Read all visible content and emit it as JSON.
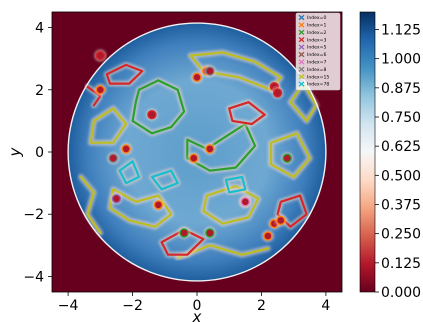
{
  "chart_data": {
    "type": "heatmap",
    "title": "",
    "xlabel": "x",
    "ylabel": "y",
    "xlim": [
      -4.5,
      4.5
    ],
    "ylim": [
      -4.5,
      4.5
    ],
    "xticks": [
      -4,
      -2,
      0,
      2,
      4
    ],
    "yticks": [
      -4,
      -2,
      0,
      2,
      4
    ],
    "xtick_labels": [
      "−4",
      "−2",
      "0",
      "2",
      "4"
    ],
    "ytick_labels": [
      "−4",
      "−2",
      "0",
      "2",
      "4"
    ],
    "domain_radius": 4.0,
    "outside_value": 0.0,
    "colorbar": {
      "colormap": "RdBu",
      "min": 0.0,
      "max": 1.2,
      "ticks": [
        0.0,
        0.125,
        0.25,
        0.375,
        0.5,
        0.625,
        0.75,
        0.875,
        1.0,
        1.125
      ],
      "tick_labels": [
        "0.000",
        "0.125",
        "0.250",
        "0.375",
        "0.500",
        "0.625",
        "0.750",
        "0.875",
        "1.000",
        "1.125"
      ]
    },
    "legend": {
      "placement": "top-right",
      "marker": "x",
      "entries": [
        {
          "label": "Index=0",
          "color": "#1f77b4"
        },
        {
          "label": "Index=1",
          "color": "#ff7f0e"
        },
        {
          "label": "Index=2",
          "color": "#2ca02c"
        },
        {
          "label": "Index=3",
          "color": "#d62728"
        },
        {
          "label": "Index=5",
          "color": "#9467bd"
        },
        {
          "label": "Index=6",
          "color": "#8c564b"
        },
        {
          "label": "Index=7",
          "color": "#e377c2"
        },
        {
          "label": "Index=8",
          "color": "#7f7f7f"
        },
        {
          "label": "Index=15",
          "color": "#bcbd22"
        },
        {
          "label": "Index=78",
          "color": "#17becf"
        }
      ]
    },
    "contour_series": [
      {
        "index": 2,
        "color": "#2ca02c",
        "points": [
          [
            -1.8,
            2.0
          ],
          [
            -1.2,
            2.3
          ],
          [
            -0.6,
            2.0
          ],
          [
            -0.4,
            1.3
          ],
          [
            -0.8,
            0.8
          ],
          [
            -1.4,
            0.6
          ],
          [
            -2.0,
            1.0
          ],
          [
            -1.9,
            1.6
          ]
        ]
      },
      {
        "index": 2,
        "color": "#2ca02c",
        "points": [
          [
            -0.3,
            0.4
          ],
          [
            0.3,
            0.1
          ],
          [
            0.9,
            0.5
          ],
          [
            1.5,
            0.9
          ],
          [
            1.8,
            0.2
          ],
          [
            1.2,
            -0.5
          ],
          [
            0.4,
            -0.6
          ],
          [
            -0.3,
            -0.2
          ]
        ]
      },
      {
        "index": 15,
        "color": "#bcbd22",
        "points": [
          [
            -3.2,
            1.0
          ],
          [
            -2.6,
            1.4
          ],
          [
            -2.2,
            0.9
          ],
          [
            -2.6,
            0.3
          ],
          [
            -3.3,
            0.3
          ]
        ]
      },
      {
        "index": 15,
        "color": "#bcbd22",
        "points": [
          [
            -0.2,
            3.1
          ],
          [
            0.8,
            3.2
          ],
          [
            1.8,
            2.9
          ],
          [
            2.6,
            2.4
          ],
          [
            2.3,
            2.0
          ],
          [
            1.3,
            2.4
          ],
          [
            0.2,
            2.6
          ]
        ]
      },
      {
        "index": 15,
        "color": "#bcbd22",
        "points": [
          [
            -2.6,
            -1.2
          ],
          [
            -1.9,
            -1.6
          ],
          [
            -1.2,
            -1.4
          ],
          [
            -0.8,
            -2.0
          ],
          [
            -1.3,
            -2.4
          ],
          [
            -2.1,
            -2.2
          ],
          [
            -2.7,
            -1.8
          ]
        ]
      },
      {
        "index": 15,
        "color": "#bcbd22",
        "points": [
          [
            0.3,
            -1.4
          ],
          [
            1.2,
            -1.1
          ],
          [
            1.9,
            -1.5
          ],
          [
            1.6,
            -2.1
          ],
          [
            0.8,
            -2.3
          ],
          [
            0.2,
            -1.9
          ]
        ]
      },
      {
        "index": 15,
        "color": "#bcbd22",
        "points": [
          [
            2.3,
            0.3
          ],
          [
            3.1,
            0.6
          ],
          [
            3.5,
            -0.2
          ],
          [
            3.0,
            -0.8
          ],
          [
            2.3,
            -0.4
          ]
        ]
      },
      {
        "index": 15,
        "color": "#bcbd22",
        "points": [
          [
            -3.6,
            -0.8
          ],
          [
            -3.2,
            -1.3
          ],
          [
            -3.4,
            -2.0
          ],
          [
            -3.0,
            -2.6
          ]
        ]
      },
      {
        "index": 15,
        "color": "#bcbd22",
        "points": [
          [
            -0.6,
            -3.4
          ],
          [
            0.4,
            -3.0
          ],
          [
            1.4,
            -3.3
          ],
          [
            2.2,
            -3.1
          ]
        ]
      },
      {
        "index": 15,
        "color": "#bcbd22",
        "points": [
          [
            2.9,
            1.6
          ],
          [
            3.4,
            1.0
          ],
          [
            3.7,
            1.5
          ],
          [
            3.3,
            2.2
          ]
        ]
      },
      {
        "index": 3,
        "color": "#d62728",
        "points": [
          [
            -2.8,
            2.5
          ],
          [
            -2.2,
            2.8
          ],
          [
            -1.7,
            2.6
          ],
          [
            -2.1,
            2.2
          ],
          [
            -2.7,
            2.2
          ]
        ]
      },
      {
        "index": 3,
        "color": "#d62728",
        "points": [
          [
            1.0,
            1.4
          ],
          [
            1.6,
            1.6
          ],
          [
            2.1,
            1.2
          ],
          [
            1.7,
            0.9
          ],
          [
            1.1,
            1.0
          ]
        ]
      },
      {
        "index": 3,
        "color": "#d62728",
        "points": [
          [
            -1.1,
            -2.9
          ],
          [
            -0.4,
            -2.5
          ],
          [
            0.2,
            -2.8
          ],
          [
            -0.3,
            -3.3
          ],
          [
            -0.9,
            -3.3
          ]
        ]
      },
      {
        "index": 3,
        "color": "#d62728",
        "points": [
          [
            2.6,
            -1.6
          ],
          [
            3.2,
            -1.4
          ],
          [
            3.4,
            -2.0
          ],
          [
            2.9,
            -2.4
          ],
          [
            2.5,
            -2.0
          ]
        ]
      },
      {
        "index": 3,
        "color": "#d62728",
        "points": [
          [
            -3.4,
            2.1
          ],
          [
            -3.0,
            1.8
          ],
          [
            -3.2,
            1.5
          ]
        ]
      },
      {
        "index": 78,
        "color": "#17becf",
        "points": [
          [
            -1.4,
            -0.8
          ],
          [
            -0.8,
            -0.6
          ],
          [
            -0.6,
            -1.0
          ],
          [
            -1.1,
            -1.2
          ]
        ]
      },
      {
        "index": 78,
        "color": "#17becf",
        "points": [
          [
            0.9,
            -0.9
          ],
          [
            1.4,
            -0.8
          ],
          [
            1.5,
            -1.2
          ],
          [
            1.0,
            -1.3
          ]
        ]
      },
      {
        "index": 78,
        "color": "#17becf",
        "points": [
          [
            -2.4,
            -0.6
          ],
          [
            -2.0,
            -0.3
          ],
          [
            -1.8,
            -0.8
          ],
          [
            -2.2,
            -1.0
          ]
        ]
      }
    ],
    "spots": [
      {
        "x": 0.0,
        "y": 2.4,
        "color": "#ff7f0e"
      },
      {
        "x": 0.3,
        "y": 2.6,
        "color": "#ff7f0e"
      },
      {
        "x": -2.2,
        "y": 0.1,
        "color": "#ff7f0e"
      },
      {
        "x": -0.1,
        "y": -0.2,
        "color": "#ff7f0e"
      },
      {
        "x": 0.4,
        "y": 0.1,
        "color": "#ff7f0e"
      },
      {
        "x": -1.2,
        "y": -1.7,
        "color": "#ff7f0e"
      },
      {
        "x": 2.4,
        "y": -2.3,
        "color": "#ff7f0e"
      },
      {
        "x": 2.2,
        "y": -2.7,
        "color": "#ff7f0e"
      },
      {
        "x": 2.6,
        "y": -2.2,
        "color": "#ff7f0e"
      },
      {
        "x": 1.5,
        "y": -1.6,
        "color": "#ff7f0e"
      },
      {
        "x": -3.0,
        "y": 2.0,
        "color": "#ff7f0e"
      },
      {
        "x": 0.4,
        "y": -2.6,
        "color": "#2ca02c"
      },
      {
        "x": -0.4,
        "y": -2.6,
        "color": "#2ca02c"
      },
      {
        "x": 2.8,
        "y": -0.2,
        "color": "#2ca02c"
      },
      {
        "x": -3.0,
        "y": 3.1,
        "color": "#d62728"
      },
      {
        "x": -1.4,
        "y": 1.2,
        "color": "#d62728"
      },
      {
        "x": 2.4,
        "y": 2.1,
        "color": "#d62728"
      },
      {
        "x": 2.5,
        "y": 1.9,
        "color": "#d62728"
      },
      {
        "x": 0.4,
        "y": 2.6,
        "color": "#7f7f7f"
      },
      {
        "x": -2.6,
        "y": -0.2,
        "color": "#7f7f7f"
      },
      {
        "x": 1.5,
        "y": -1.6,
        "color": "#e377c2"
      },
      {
        "x": -2.5,
        "y": -1.5,
        "color": "#9467bd"
      }
    ]
  }
}
